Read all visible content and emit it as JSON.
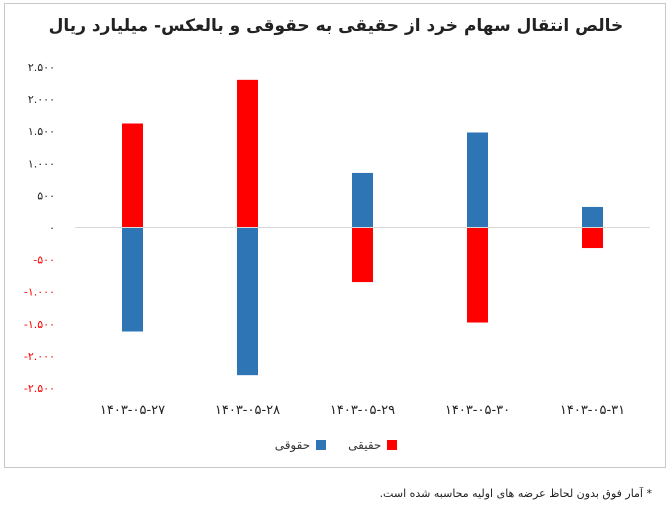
{
  "chart_data": {
    "type": "bar",
    "title": "خالص انتقال سهام خرد از حقیقی به حقوقی و بالعکس- میلیارد ریال",
    "categories": [
      "۱۴۰۳-۰۵-۲۷",
      "۱۴۰۳-۰۵-۲۸",
      "۱۴۰۳-۰۵-۲۹",
      "۱۴۰۳-۰۵-۳۰",
      "۱۴۰۳-۰۵-۳۱"
    ],
    "series": [
      {
        "name": "حقیقی",
        "color": "#ff0000",
        "values": [
          1620,
          2300,
          -850,
          -1480,
          -320
        ]
      },
      {
        "name": "حقوقی",
        "color": "#2e75b6",
        "values": [
          -1620,
          -2300,
          850,
          1480,
          320
        ]
      }
    ],
    "ylim": [
      -2500,
      2500
    ],
    "yticks": [
      2500,
      2000,
      1500,
      1000,
      500,
      0,
      -500,
      -1000,
      -1500,
      -2000,
      -2500
    ],
    "ytick_labels": [
      "۲.۵۰۰",
      "۲.۰۰۰",
      "۱.۵۰۰",
      "۱.۰۰۰",
      "۵۰۰",
      "۰",
      "-۵۰۰",
      "-۱.۰۰۰",
      "-۱.۵۰۰",
      "-۲.۰۰۰",
      "-۲.۵۰۰"
    ],
    "grid": false,
    "legend_position": "bottom"
  },
  "footnote": "* آمار فوق بدون لحاظ عرضه های اولیه محاسبه شده است."
}
